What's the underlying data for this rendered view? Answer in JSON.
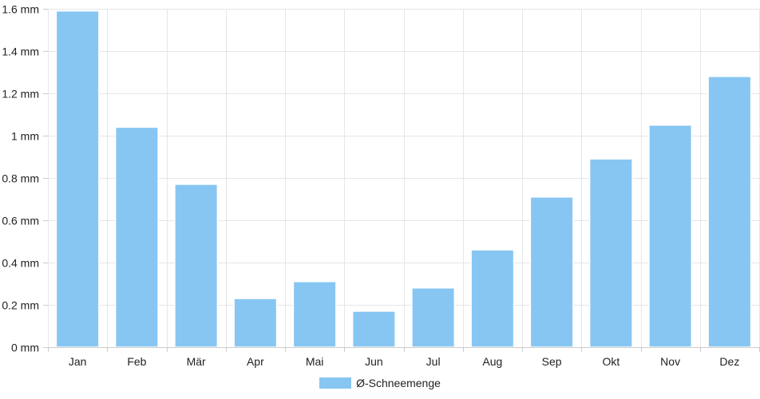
{
  "chart_data": {
    "type": "bar",
    "categories": [
      "Jan",
      "Feb",
      "Mär",
      "Apr",
      "Mai",
      "Jun",
      "Jul",
      "Aug",
      "Sep",
      "Okt",
      "Nov",
      "Dez"
    ],
    "series": [
      {
        "name": "Ø-Schneemenge",
        "values": [
          1.59,
          1.04,
          0.77,
          0.23,
          0.31,
          0.17,
          0.28,
          0.46,
          0.71,
          0.89,
          1.05,
          1.28
        ]
      }
    ],
    "ylim": [
      0,
      1.6
    ],
    "yticks": [
      0,
      0.2,
      0.4,
      0.6,
      0.8,
      1,
      1.2,
      1.4,
      1.6
    ],
    "ytick_labels": [
      "0 mm",
      "0.2 mm",
      "0.4 mm",
      "0.6 mm",
      "0.8 mm",
      "1 mm",
      "1.2 mm",
      "1.4 mm",
      "1.6 mm"
    ],
    "title": "",
    "xlabel": "",
    "ylabel": "",
    "grid": true,
    "legend_position": "bottom",
    "colors": {
      "bar": "#87c6f2",
      "bar_edge": "#ffffff",
      "grid": "#e6e6e6",
      "axis": "#cccccc",
      "text": "#222222"
    }
  }
}
